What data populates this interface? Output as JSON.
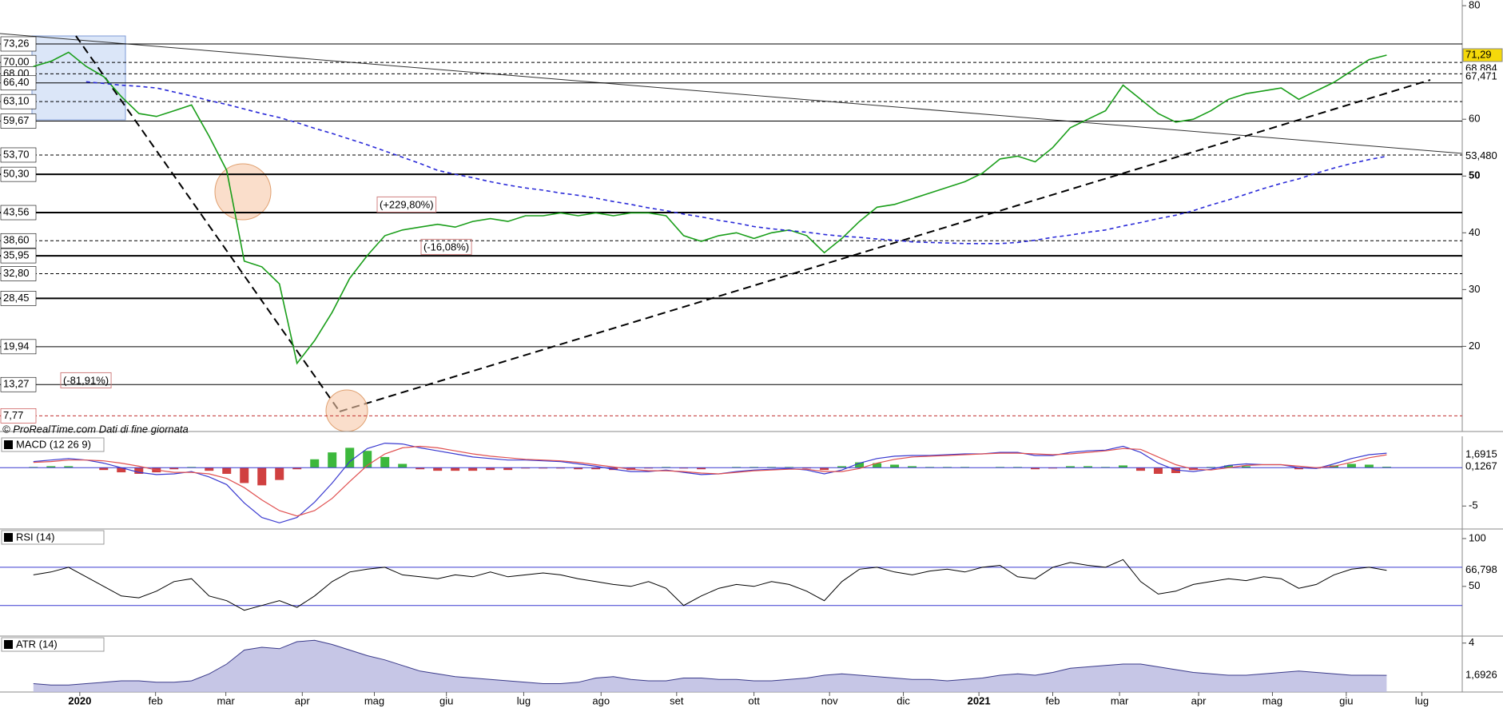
{
  "chart_data": [
    {
      "type": "line",
      "xlim": [
        -1.9,
        81.3
      ],
      "ylim": [
        5,
        81
      ],
      "yticks": [
        80,
        60,
        50,
        40,
        30,
        20
      ],
      "series": [
        {
          "color": "#1a9e1a",
          "width": 1.6,
          "values": [
            69.3,
            70.2,
            71.8,
            69.3,
            67.5,
            64,
            61,
            60.5,
            61.5,
            62.5,
            57,
            51,
            35,
            34,
            31,
            17,
            21,
            26,
            32,
            36,
            39.5,
            40.5,
            41,
            41.5,
            41,
            42,
            42.5,
            42,
            43,
            43,
            43.5,
            43,
            43.5,
            43,
            43.5,
            43.5,
            43,
            39.5,
            38.5,
            39.5,
            40,
            39,
            40,
            40.5,
            39.5,
            36.5,
            39,
            42,
            44.5,
            45,
            46,
            47,
            48,
            49,
            50.5,
            53,
            53.5,
            52.5,
            55,
            58.5,
            60,
            61.5,
            66,
            63.5,
            61,
            59.5,
            60,
            61.5,
            63.5,
            64.5,
            65,
            65.5,
            63.5,
            65,
            66.5,
            68.5,
            70.5,
            71.29
          ]
        },
        {
          "color": "#2a2ad8",
          "width": 1.6,
          "dashed": true,
          "values": [
            null,
            null,
            null,
            66.6,
            66.3,
            66,
            65.8,
            65.5,
            64.8,
            64.1,
            63.3,
            62.6,
            61.8,
            61,
            60.3,
            59.4,
            58.4,
            57.5,
            56.5,
            55.5,
            54.4,
            53.3,
            52.2,
            51,
            50.3,
            49.7,
            49,
            48.4,
            47.9,
            47.5,
            47,
            46.6,
            46.1,
            45.5,
            45,
            44.4,
            43.9,
            43.3,
            42.8,
            42.2,
            41.7,
            41.1,
            40.7,
            40.4,
            40.1,
            39.7,
            39.4,
            39.2,
            38.9,
            38.7,
            38.4,
            38.3,
            38.2,
            38.1,
            38.1,
            38.1,
            38.3,
            38.7,
            39.2,
            39.6,
            40.1,
            40.5,
            41.2,
            41.8,
            42.5,
            43.1,
            43.9,
            44.9,
            45.8,
            46.8,
            47.8,
            48.7,
            49.5,
            50.5,
            51.4,
            52.2,
            52.9,
            53.48
          ]
        }
      ],
      "levels": [
        {
          "value": 73.26,
          "label": "73,26",
          "dashed": false,
          "color": "#000000"
        },
        {
          "value": 70,
          "label": "70,00",
          "dashed": true,
          "color": "#000000"
        },
        {
          "value": 68,
          "label": "68,00",
          "dashed": true,
          "color": "#000000"
        },
        {
          "value": 66.4,
          "label": "66,40",
          "dashed": false,
          "color": "#000000"
        },
        {
          "value": 63.1,
          "label": "63,10",
          "dashed": true,
          "color": "#000000"
        },
        {
          "value": 59.67,
          "label": "59,67",
          "dashed": false,
          "color": "#000000"
        },
        {
          "value": 53.7,
          "label": "53,70",
          "dashed": true,
          "color": "#000000"
        },
        {
          "value": 50.3,
          "label": "50,30",
          "dashed": false,
          "color": "#000000"
        },
        {
          "value": 43.56,
          "label": "43,56",
          "dashed": false,
          "color": "#000000"
        },
        {
          "value": 38.6,
          "label": "38,60",
          "dashed": true,
          "color": "#000000"
        },
        {
          "value": 35.95,
          "label": "35,95",
          "dashed": false,
          "color": "#000000"
        },
        {
          "value": 32.8,
          "label": "32,80",
          "dashed": true,
          "color": "#000000"
        },
        {
          "value": 28.45,
          "label": "28,45",
          "dashed": false,
          "color": "#000000"
        },
        {
          "value": 19.94,
          "label": "19,94",
          "dashed": false,
          "color": "#000000"
        },
        {
          "value": 13.27,
          "label": "13,27",
          "dashed": false,
          "color": "#000000"
        },
        {
          "value": 7.77,
          "label": "7,77",
          "dashed": true,
          "color": "#c03030"
        }
      ],
      "markers": [
        {
          "value": 71.29,
          "label": "71,29",
          "color": "#000000",
          "background": "#f5d90a"
        },
        {
          "value": 68.884,
          "label": "68,884",
          "color": "#d04040",
          "background": "#ffffff"
        },
        {
          "value": 67.471,
          "label": "67,471",
          "color": "#22a022",
          "background": "#ffffff"
        },
        {
          "value": 53.48,
          "label": "53,480",
          "color": "#2a2ad8",
          "background": "#ffffff"
        }
      ],
      "annotations": [
        "(+229,80%)",
        "(-16,08%)",
        "(-81,91%)"
      ],
      "source": "© ProRealTime.com Dati di fine giornata"
    },
    {
      "type": "line",
      "title": "MACD (12 26 9)",
      "xlim": [
        -1.9,
        81.3
      ],
      "ylim": [
        -8,
        4.1
      ],
      "yticks": [
        -5
      ],
      "series": [
        {
          "type": "bar",
          "color": "#3cb83c",
          "negative_color": "#d04040",
          "values": [
            0.1,
            0.2,
            0.2,
            0,
            -0.3,
            -0.6,
            -0.8,
            -0.6,
            -0.2,
            0.1,
            -0.4,
            -0.8,
            -2,
            -2.3,
            -1.6,
            -0.2,
            1.1,
            2,
            2.6,
            2.2,
            1.4,
            0.5,
            -0.2,
            -0.4,
            -0.4,
            -0.4,
            -0.3,
            -0.3,
            -0.1,
            -0.1,
            -0.1,
            -0.2,
            -0.2,
            -0.3,
            -0.3,
            -0.1,
            0.1,
            -0.1,
            -0.2,
            0,
            0.1,
            0.1,
            0.1,
            0.1,
            -0.1,
            -0.3,
            0.2,
            0.7,
            0.6,
            0.4,
            0.2,
            0.1,
            0.1,
            0.1,
            0,
            0.1,
            0.1,
            -0.2,
            -0.1,
            0.2,
            0.2,
            0.1,
            0.3,
            -0.4,
            -0.8,
            -0.7,
            -0.3,
            0.1,
            0.3,
            0.2,
            0,
            0,
            -0.2,
            -0.1,
            0.3,
            0.5,
            0.4,
            0.1267
          ]
        },
        {
          "color": "#3a3ad0",
          "width": 1.2,
          "values": [
            0.8,
            1,
            1.2,
            1,
            0.6,
            0,
            -0.6,
            -0.9,
            -0.8,
            -0.5,
            -1.2,
            -2.2,
            -4.6,
            -6.5,
            -7.2,
            -6.5,
            -4.5,
            -2,
            0.8,
            2.5,
            3.2,
            3.1,
            2.6,
            2.2,
            1.8,
            1.4,
            1.2,
            1,
            1,
            0.9,
            0.8,
            0.5,
            0.2,
            -0.2,
            -0.5,
            -0.5,
            -0.3,
            -0.6,
            -0.9,
            -0.8,
            -0.5,
            -0.3,
            -0.2,
            -0.1,
            -0.3,
            -0.8,
            -0.3,
            0.6,
            1.2,
            1.5,
            1.6,
            1.6,
            1.7,
            1.8,
            1.8,
            2,
            2,
            1.6,
            1.6,
            2,
            2.2,
            2.3,
            2.8,
            2,
            0.6,
            -0.3,
            -0.5,
            -0.2,
            0.3,
            0.5,
            0.4,
            0.4,
            0,
            -0.1,
            0.5,
            1.2,
            1.7,
            1.9
          ]
        },
        {
          "color": "#e05050",
          "width": 1.2,
          "values": [
            0.7,
            0.8,
            1,
            1,
            0.9,
            0.6,
            0.2,
            -0.3,
            -0.6,
            -0.6,
            -0.8,
            -1.4,
            -2.6,
            -4.2,
            -5.6,
            -6.3,
            -5.6,
            -4,
            -1.8,
            0.3,
            1.8,
            2.6,
            2.8,
            2.6,
            2.2,
            1.8,
            1.5,
            1.3,
            1.1,
            1,
            0.9,
            0.7,
            0.4,
            0.1,
            -0.2,
            -0.4,
            -0.4,
            -0.5,
            -0.7,
            -0.8,
            -0.6,
            -0.4,
            -0.3,
            -0.2,
            -0.2,
            -0.5,
            -0.5,
            -0.1,
            0.6,
            1.1,
            1.4,
            1.5,
            1.6,
            1.7,
            1.8,
            1.9,
            1.9,
            1.8,
            1.7,
            1.8,
            2,
            2.2,
            2.5,
            2.4,
            1.4,
            0.4,
            -0.2,
            -0.3,
            0,
            0.3,
            0.4,
            0.4,
            0.2,
            0,
            0.2,
            0.7,
            1.3,
            1.69
          ]
        }
      ],
      "markers": [
        {
          "value": 1.6915,
          "label": "1,6915",
          "color": "#d04040",
          "background": "#ffffff"
        },
        {
          "value": 0.1267,
          "label": "0,1267",
          "color": "#22a022",
          "background": "#ffffff"
        }
      ]
    },
    {
      "type": "line",
      "title": "RSI (14)",
      "xlim": [
        -1.9,
        81.3
      ],
      "ylim": [
        -2,
        110
      ],
      "yticks": [
        100,
        50
      ],
      "levels": [
        70,
        30
      ],
      "series": [
        {
          "color": "#000000",
          "width": 1,
          "values": [
            62,
            65,
            70,
            60,
            50,
            40,
            38,
            45,
            55,
            58,
            40,
            35,
            25,
            30,
            35,
            28,
            40,
            55,
            65,
            68,
            70,
            62,
            60,
            58,
            62,
            60,
            65,
            60,
            62,
            64,
            62,
            58,
            55,
            52,
            50,
            55,
            48,
            30,
            40,
            48,
            52,
            50,
            55,
            52,
            45,
            35,
            55,
            68,
            70,
            65,
            62,
            66,
            68,
            65,
            70,
            72,
            60,
            58,
            70,
            75,
            72,
            70,
            78,
            55,
            42,
            45,
            52,
            55,
            58,
            56,
            60,
            58,
            48,
            52,
            62,
            68,
            70,
            66.798
          ]
        }
      ],
      "markers": [
        {
          "value": 66.798,
          "label": "66,798",
          "color": "#000000",
          "background": "#ffffff"
        }
      ]
    },
    {
      "type": "area",
      "title": "ATR (14)",
      "xlim": [
        -1.9,
        81.3
      ],
      "ylim": [
        0.5,
        4.5
      ],
      "yticks": [
        4
      ],
      "xticks": [
        {
          "value": 2.64,
          "label": "2020"
        },
        {
          "value": 6.95,
          "label": "feb"
        },
        {
          "value": 10.95,
          "label": "mar"
        },
        {
          "value": 15.3,
          "label": "apr"
        },
        {
          "value": 19.4,
          "label": "mag"
        },
        {
          "value": 23.5,
          "label": "giu"
        },
        {
          "value": 27.9,
          "label": "lug"
        },
        {
          "value": 32.3,
          "label": "ago"
        },
        {
          "value": 36.6,
          "label": "set"
        },
        {
          "value": 41,
          "label": "ott"
        },
        {
          "value": 45.3,
          "label": "nov"
        },
        {
          "value": 49.5,
          "label": "dic"
        },
        {
          "value": 53.8,
          "label": "2021"
        },
        {
          "value": 58,
          "label": "feb"
        },
        {
          "value": 61.8,
          "label": "mar"
        },
        {
          "value": 66.3,
          "label": "apr"
        },
        {
          "value": 70.5,
          "label": "mag"
        },
        {
          "value": 74.7,
          "label": "giu"
        },
        {
          "value": 79,
          "label": "lug"
        }
      ],
      "series": [
        {
          "color": "#3a3a8a",
          "fill": "#b8b8e0",
          "width": 1,
          "values": [
            1.1,
            1,
            1,
            1.1,
            1.2,
            1.3,
            1.3,
            1.2,
            1.2,
            1.3,
            1.8,
            2.5,
            3.5,
            3.7,
            3.6,
            4.1,
            4.2,
            3.9,
            3.5,
            3.1,
            2.8,
            2.4,
            2,
            1.8,
            1.6,
            1.5,
            1.4,
            1.3,
            1.2,
            1.1,
            1.1,
            1.2,
            1.5,
            1.6,
            1.4,
            1.3,
            1.3,
            1.5,
            1.5,
            1.4,
            1.4,
            1.3,
            1.3,
            1.4,
            1.5,
            1.7,
            1.8,
            1.7,
            1.6,
            1.5,
            1.4,
            1.4,
            1.3,
            1.4,
            1.5,
            1.7,
            1.8,
            1.7,
            1.9,
            2.2,
            2.3,
            2.4,
            2.5,
            2.5,
            2.3,
            2.1,
            1.9,
            1.8,
            1.7,
            1.7,
            1.8,
            1.9,
            2,
            1.9,
            1.8,
            1.7,
            1.7,
            1.6926
          ]
        }
      ],
      "markers": [
        {
          "value": 1.6926,
          "label": "1,6926",
          "color": "#000000",
          "background": "#ffffff"
        }
      ]
    }
  ]
}
